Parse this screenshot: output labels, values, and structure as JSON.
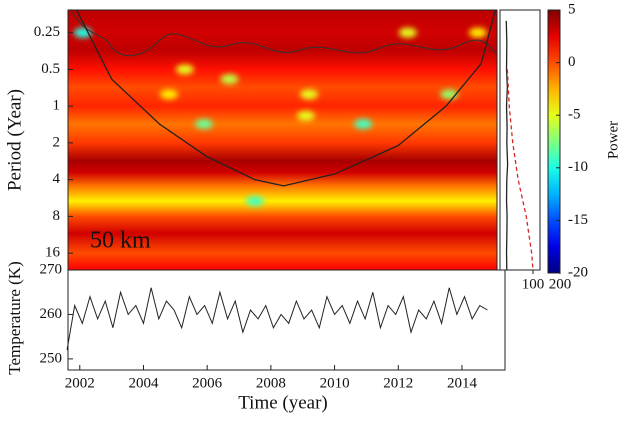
{
  "chart_data": [
    {
      "type": "heatmap",
      "annotation": "50 km",
      "ylabel": "Period (Year)",
      "ylog": 2,
      "xlim": [
        2001.63,
        2015.1
      ],
      "ylim": [
        0.163,
        22
      ],
      "yticks": [
        0.25,
        0.5,
        1,
        2,
        4,
        8,
        16
      ],
      "power_profile": {
        "period": [
          0.163,
          0.25,
          0.35,
          0.5,
          0.7,
          1,
          1.4,
          2,
          2.8,
          3.5,
          4.5,
          6,
          8,
          11,
          16,
          22
        ],
        "power": [
          3.5,
          3,
          3.5,
          1.5,
          0,
          1,
          -1,
          0.5,
          4,
          3,
          -1,
          -4,
          0,
          3,
          0,
          2
        ]
      },
      "spots": {
        "x": [
          2002.1,
          2005.3,
          2006.7,
          2004.8,
          2009.2,
          2013.6,
          2005.9,
          2009.1,
          2010.9,
          2012.3,
          2014.5,
          2007.5
        ],
        "period": [
          0.25,
          0.5,
          0.6,
          0.8,
          0.8,
          0.8,
          1.4,
          1.2,
          1.4,
          0.25,
          0.25,
          6
        ],
        "power": [
          -10,
          -5,
          -6,
          -4,
          -5,
          -7,
          -8,
          -5,
          -9,
          -5,
          -4,
          -9
        ]
      },
      "cone": {
        "x": [
          2001.9,
          2003,
          2004.5,
          2006,
          2007.5,
          2008.4,
          2010,
          2012,
          2013.5,
          2014.6,
          2015.05
        ],
        "period": [
          0.163,
          0.6,
          1.4,
          2.6,
          4,
          4.5,
          3.6,
          2.1,
          1,
          0.45,
          0.163
        ]
      },
      "colorbar": {
        "label": "Power",
        "lim": [
          -20,
          5
        ],
        "ticks": [
          5,
          0,
          -5,
          -10,
          -15,
          -20
        ]
      }
    },
    {
      "type": "spectrum",
      "xlim": [
        0,
        200
      ],
      "xticks": [
        100,
        200
      ],
      "series": [
        {
          "color": "#222",
          "dash": false,
          "period": [
            0.2,
            0.3,
            0.5,
            0.7,
            1,
            1.5,
            2,
            3,
            4,
            6,
            8,
            12,
            16,
            22
          ],
          "values": [
            1,
            3,
            2,
            5,
            2,
            4,
            3,
            6,
            3,
            2,
            4,
            3,
            2,
            3
          ]
        },
        {
          "color": "#d62728",
          "dash": true,
          "period": [
            0.5,
            1,
            2,
            4,
            8,
            16,
            22
          ],
          "values": [
            5,
            12,
            25,
            45,
            75,
            95,
            100
          ]
        }
      ]
    },
    {
      "type": "line",
      "xlabel": "Time (year)",
      "ylabel": "Temperature (K)",
      "color": "#222",
      "xlim": [
        2001.63,
        2015.1
      ],
      "xticks": [
        2002,
        2004,
        2006,
        2008,
        2010,
        2012,
        2014
      ],
      "ylim": [
        247.5,
        270
      ],
      "yticks": [
        250,
        260,
        270
      ],
      "x": [
        2001.6,
        2001.84,
        2002.08,
        2002.32,
        2002.56,
        2002.8,
        2003.04,
        2003.28,
        2003.52,
        2003.76,
        2004.0,
        2004.24,
        2004.48,
        2004.72,
        2004.96,
        2005.2,
        2005.44,
        2005.68,
        2005.92,
        2006.16,
        2006.4,
        2006.64,
        2006.88,
        2007.12,
        2007.36,
        2007.6,
        2007.84,
        2008.08,
        2008.32,
        2008.56,
        2008.8,
        2009.04,
        2009.28,
        2009.52,
        2009.76,
        2010.0,
        2010.24,
        2010.48,
        2010.72,
        2010.96,
        2011.2,
        2011.44,
        2011.68,
        2011.92,
        2012.16,
        2012.4,
        2012.64,
        2012.88,
        2013.12,
        2013.36,
        2013.6,
        2013.84,
        2014.08,
        2014.32,
        2014.56,
        2014.8
      ],
      "values": [
        252,
        262,
        258,
        264,
        259,
        263,
        257,
        265,
        260,
        262,
        258,
        266,
        259,
        263,
        261,
        257,
        264,
        260,
        262,
        258,
        265,
        259,
        263,
        256,
        261,
        259,
        262,
        257,
        260,
        258,
        263,
        259,
        261,
        257,
        264,
        260,
        262,
        258,
        263,
        259,
        265,
        257,
        262,
        260,
        264,
        256,
        261,
        259,
        263,
        258,
        266,
        260,
        264,
        259,
        262,
        261
      ]
    }
  ]
}
